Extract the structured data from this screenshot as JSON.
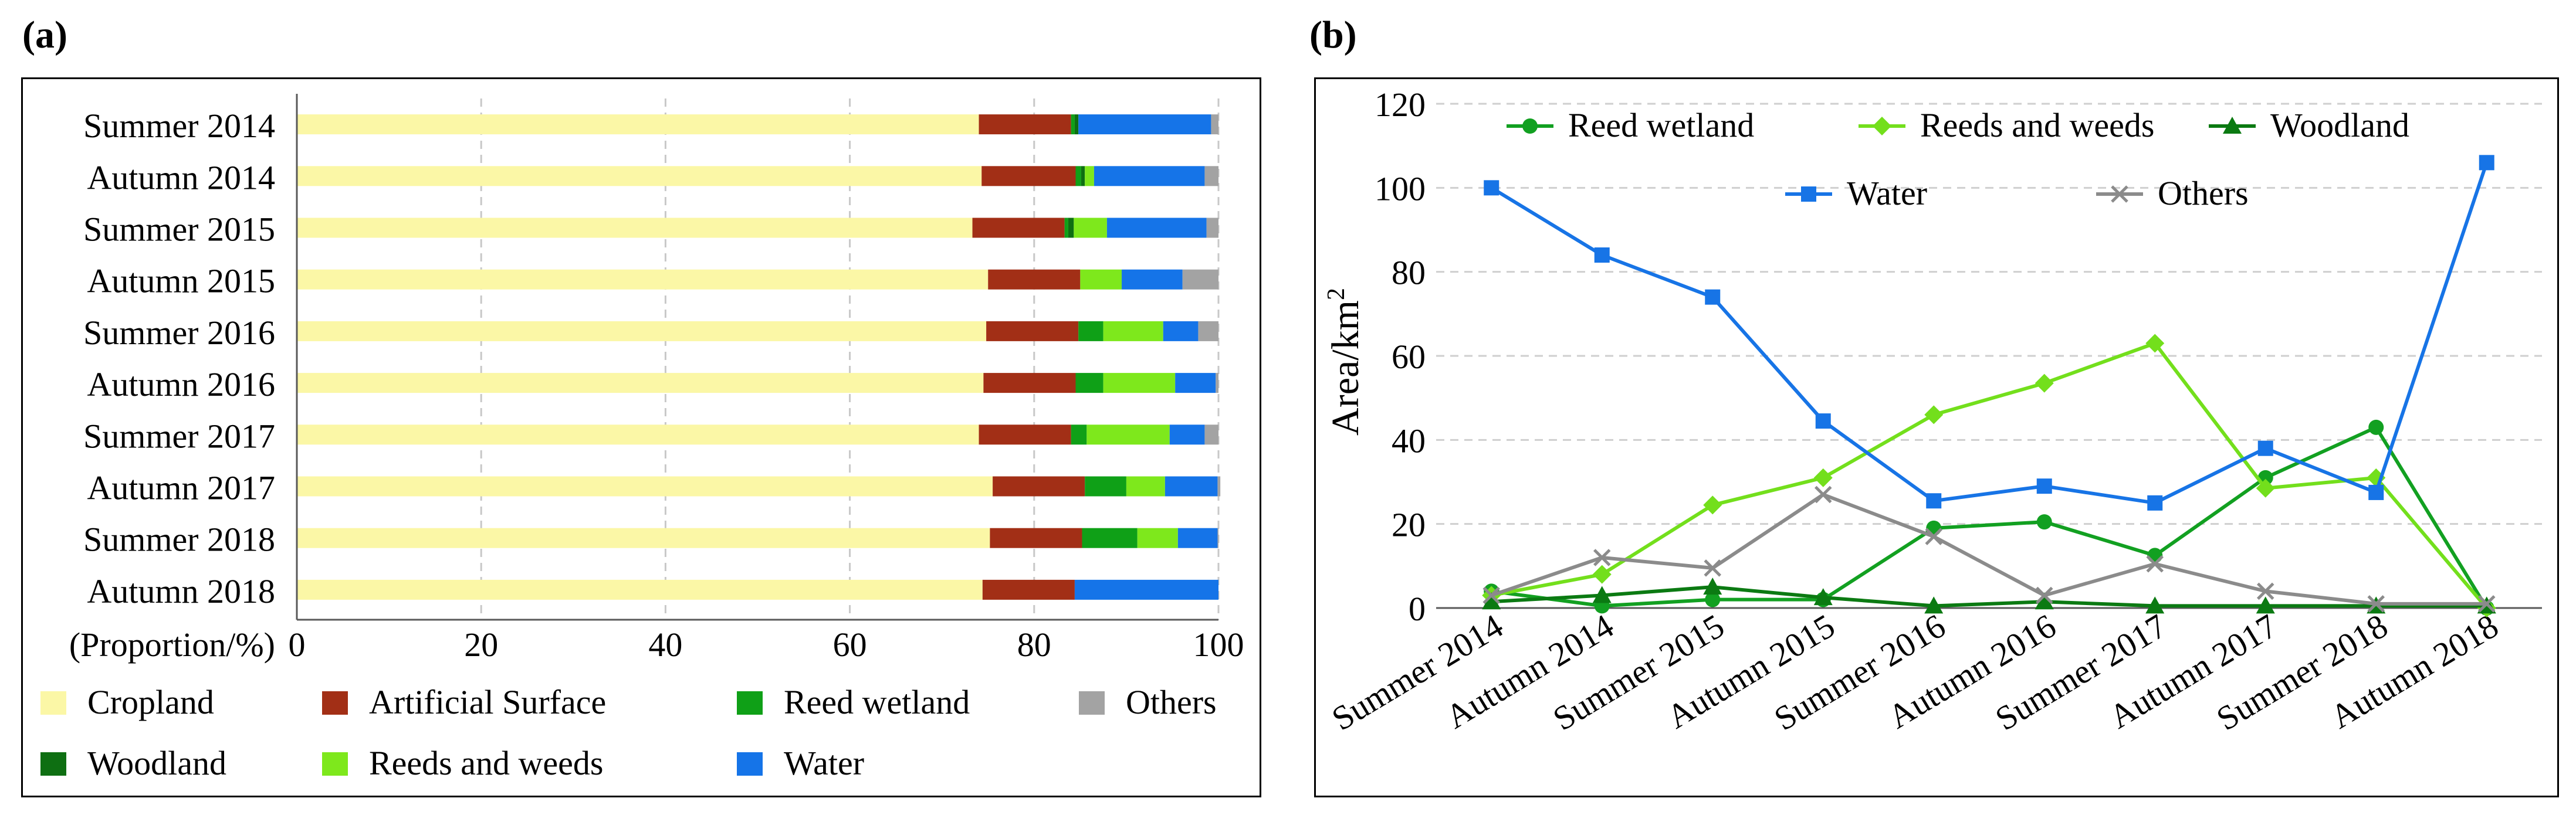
{
  "panel_a_label": "(a)",
  "panel_b_label": "(b)",
  "chart_data": [
    {
      "type": "bar",
      "stacked": true,
      "orientation": "horizontal",
      "title": "",
      "xlabel": "(Proportion/%)",
      "xlim": [
        0,
        100
      ],
      "xticks": [
        0,
        20,
        40,
        60,
        80,
        100
      ],
      "categories": [
        "Summer 2014",
        "Autumn 2014",
        "Summer 2015",
        "Autumn 2015",
        "Summer 2016",
        "Autumn 2016",
        "Summer 2017",
        "Autumn 2017",
        "Summer 2018",
        "Autumn 2018"
      ],
      "series": [
        {
          "name": "Cropland",
          "color": "#fbf7a6",
          "values": [
            74,
            74.3,
            73.3,
            75,
            74.8,
            74.5,
            74,
            75.5,
            75.2,
            74.4
          ]
        },
        {
          "name": "Artificial Surface",
          "color": "#a22f16",
          "values": [
            10,
            10.2,
            10,
            10,
            10,
            10,
            10,
            10,
            10,
            10
          ]
        },
        {
          "name": "Reed wetland",
          "color": "#0fa017",
          "values": [
            0.4,
            0.6,
            0.4,
            0,
            2.7,
            3,
            1.7,
            4.5,
            6,
            0
          ]
        },
        {
          "name": "Woodland",
          "color": "#0e6f12",
          "values": [
            0.4,
            0.4,
            0.6,
            0,
            0,
            0,
            0,
            0,
            0,
            0
          ]
        },
        {
          "name": "Reeds and weeds",
          "color": "#7ee81c",
          "values": [
            0,
            1,
            3.6,
            4.5,
            6.5,
            7.8,
            9,
            4.2,
            4.4,
            0
          ]
        },
        {
          "name": "Water",
          "color": "#1574e8",
          "values": [
            14.4,
            12,
            10.8,
            6.6,
            3.8,
            4.4,
            3.8,
            5.7,
            4.3,
            15.6
          ]
        },
        {
          "name": "Others",
          "color": "#a3a3a3",
          "values": [
            0.8,
            1.5,
            1.3,
            3.9,
            2.2,
            0.3,
            1.5,
            0.3,
            0.1,
            0
          ]
        }
      ],
      "legend": [
        [
          "Cropland",
          "Artificial Surface",
          "Reed wetland",
          "Others"
        ],
        [
          "Woodland",
          "Reeds and weeds",
          "Water"
        ]
      ],
      "legend_position": "bottom"
    },
    {
      "type": "line",
      "title": "",
      "xlabel": "",
      "ylabel_main": "Area/km",
      "ylabel_sup": "2",
      "ylim": [
        0,
        120
      ],
      "yticks": [
        0,
        20,
        40,
        60,
        80,
        100,
        120
      ],
      "categories": [
        "Summer 2014",
        "Autumn 2014",
        "Summer 2015",
        "Autumn 2015",
        "Summer 2016",
        "Autumn 2016",
        "Summer 2017",
        "Autumn 2017",
        "Summer 2018",
        "Autumn 2018"
      ],
      "series": [
        {
          "name": "Reed wetland",
          "color": "#12a021",
          "marker": "circle",
          "values": [
            4,
            0.5,
            2,
            2,
            19,
            20.5,
            12.5,
            31,
            43,
            0
          ]
        },
        {
          "name": "Reeds and weeds",
          "color": "#73df1c",
          "marker": "diamond",
          "values": [
            3,
            8,
            24.5,
            31,
            46,
            53.5,
            63,
            28.5,
            31,
            0
          ]
        },
        {
          "name": "Woodland",
          "color": "#0b7a12",
          "marker": "triangle",
          "values": [
            1.5,
            3,
            5,
            2.5,
            0.5,
            1.5,
            0.5,
            0.5,
            0.5,
            0.5
          ]
        },
        {
          "name": "Water",
          "color": "#1774e6",
          "marker": "square",
          "values": [
            100,
            84,
            74,
            44.5,
            25.5,
            29,
            25,
            38,
            27.5,
            106
          ]
        },
        {
          "name": "Others",
          "color": "#8b8b8b",
          "marker": "x",
          "values": [
            3,
            12,
            9.5,
            27,
            17,
            3,
            10.5,
            4,
            1,
            1
          ]
        }
      ],
      "legend": [
        [
          "Reed wetland",
          "Reeds and weeds",
          "Woodland"
        ],
        [
          "Water",
          "Others"
        ]
      ],
      "legend_position": "top-right",
      "grid": "horizontal dashed"
    }
  ]
}
